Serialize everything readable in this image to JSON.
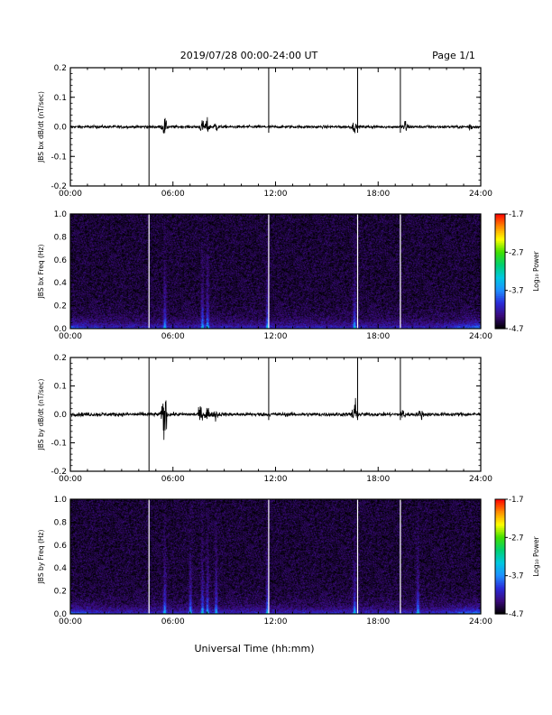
{
  "header": {
    "title": "2019/07/28  00:00-24:00 UT",
    "page": "Page 1/1"
  },
  "xaxis": {
    "label": "Universal Time (hh:mm)",
    "range_hours": [
      0,
      24
    ],
    "ticks": [
      "00:00",
      "06:00",
      "12:00",
      "18:00",
      "24:00"
    ]
  },
  "colorbar": {
    "label": "Log₁₀ Power",
    "ticks": [
      "-1.7",
      "-2.7",
      "-3.7",
      "-4.7"
    ],
    "range": [
      -4.7,
      -1.7
    ],
    "colors": [
      "#000000",
      "#3a0a7a",
      "#2a2ad8",
      "#1e90ff",
      "#00c8e0",
      "#00d070",
      "#40e000",
      "#ffff00",
      "#ff8c00",
      "#ff0000"
    ]
  },
  "chart_data": [
    {
      "type": "line",
      "ylabel": "JBS bx dB/dt (nT/sec)",
      "ylim": [
        -0.2,
        0.2
      ],
      "yticks": [
        "0.2",
        "0.1",
        "0.0",
        "-0.1",
        "-0.2"
      ],
      "gap_markers_hours": [
        4.6,
        11.6,
        16.8,
        19.3
      ],
      "gap_marker_extent": "full",
      "noise_amplitude": 0.005,
      "bursts": [
        {
          "t": 5.5,
          "amp": 0.03
        },
        {
          "t": 7.7,
          "amp": 0.02
        },
        {
          "t": 8.0,
          "amp": 0.025
        },
        {
          "t": 8.5,
          "amp": 0.015
        },
        {
          "t": 16.6,
          "amp": 0.015
        },
        {
          "t": 19.6,
          "amp": 0.025
        },
        {
          "t": 23.4,
          "amp": 0.012
        }
      ]
    },
    {
      "type": "heatmap",
      "ylabel": "JBS bx Freq (Hz)",
      "ylim": [
        0.0,
        1.0
      ],
      "yticks": [
        "1.0",
        "0.8",
        "0.6",
        "0.4",
        "0.2",
        "0.0"
      ],
      "zlim": [
        -4.7,
        -1.7
      ],
      "zlabel": "Log₁₀ Power",
      "gap_markers_hours": [
        4.6,
        11.6,
        16.8,
        19.3
      ],
      "broadband_events_hours": [
        5.5,
        7.7,
        8.0,
        11.5,
        16.6
      ]
    },
    {
      "type": "line",
      "ylabel": "JBS by dB/dt (nT/sec)",
      "ylim": [
        -0.2,
        0.2
      ],
      "yticks": [
        "0.2",
        "0.1",
        "0.0",
        "-0.1",
        "-0.2"
      ],
      "gap_markers_hours": [
        4.6,
        11.6,
        16.8,
        19.3
      ],
      "gap_marker_extent": "full",
      "noise_amplitude": 0.007,
      "bursts": [
        {
          "t": 5.5,
          "amp": 0.11
        },
        {
          "t": 7.6,
          "amp": 0.025
        },
        {
          "t": 8.0,
          "amp": 0.03
        },
        {
          "t": 8.5,
          "amp": 0.02
        },
        {
          "t": 16.6,
          "amp": 0.07
        },
        {
          "t": 19.5,
          "amp": 0.02
        },
        {
          "t": 20.5,
          "amp": 0.015
        }
      ]
    },
    {
      "type": "heatmap",
      "ylabel": "JBS by Freq (Hz)",
      "ylim": [
        0.0,
        1.0
      ],
      "yticks": [
        "1.0",
        "0.8",
        "0.6",
        "0.4",
        "0.2",
        "0.0"
      ],
      "zlim": [
        -4.7,
        -1.7
      ],
      "zlabel": "Log₁₀ Power",
      "gap_markers_hours": [
        4.6,
        11.6,
        16.8,
        19.3
      ],
      "broadband_events_hours": [
        5.5,
        7.0,
        7.7,
        8.0,
        8.5,
        11.5,
        16.6,
        20.3
      ]
    }
  ]
}
